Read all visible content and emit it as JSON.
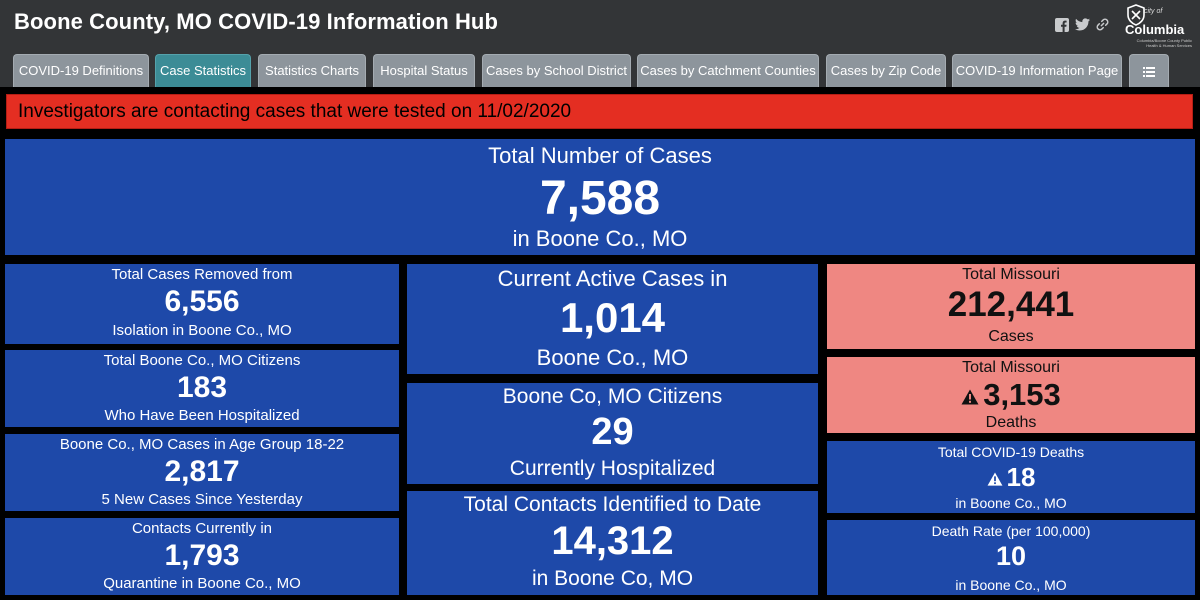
{
  "header": {
    "title": "Boone County, MO COVID-19 Information Hub",
    "logo": {
      "city_of": "city of",
      "name": "Columbia",
      "subtitle": "Columbia/Boone County Public Health & Human Services"
    }
  },
  "tabs": [
    {
      "label": "COVID-19 Definitions"
    },
    {
      "label": "Case Statistics",
      "active": true
    },
    {
      "label": "Statistics Charts"
    },
    {
      "label": "Hospital Status"
    },
    {
      "label": "Cases by School District"
    },
    {
      "label": "Cases by Catchment Counties"
    },
    {
      "label": "Cases by Zip Code"
    },
    {
      "label": "COVID-19 Information Page"
    }
  ],
  "alert": "Investigators are contacting cases that were tested on 11/02/2020",
  "total": {
    "label": "Total Number of Cases",
    "value": "7,588",
    "sub": "in Boone Co., MO"
  },
  "left": [
    {
      "top": "Total Cases Removed from",
      "value": "6,556",
      "bottom": "Isolation in Boone Co., MO"
    },
    {
      "top": "Total Boone Co., MO Citizens",
      "value": "183",
      "bottom": "Who Have Been Hospitalized"
    },
    {
      "top": "Boone Co., MO Cases in Age Group 18-22",
      "value": "2,817",
      "bottom": "5 New Cases Since Yesterday"
    },
    {
      "top": "Contacts Currently in",
      "value": "1,793",
      "bottom": "Quarantine in Boone Co., MO"
    }
  ],
  "middle": [
    {
      "top": "Current Active Cases in",
      "value": "1,014",
      "bottom": "Boone Co., MO"
    },
    {
      "top": "Boone Co, MO Citizens",
      "value": "29",
      "bottom": "Currently Hospitalized"
    },
    {
      "top": "Total Contacts Identified to Date",
      "value": "14,312",
      "bottom": "in Boone Co, MO"
    }
  ],
  "right": [
    {
      "top": "Total Missouri",
      "value": "212,441",
      "bottom": "Cases"
    },
    {
      "top": "Total Missouri",
      "value": "3,153",
      "bottom": "Deaths"
    },
    {
      "top": "Total COVID-19 Deaths",
      "value": "18",
      "bottom": "in Boone Co., MO"
    },
    {
      "top": "Death Rate (per 100,000)",
      "value": "10",
      "bottom": "in Boone Co., MO"
    }
  ],
  "colors": {
    "panel_blue": "#1e49a9",
    "panel_pink": "#ef8782",
    "alert_red": "#e42e22",
    "tab_active": "#3c8c96",
    "tab": "#8d959c",
    "header": "#333537"
  },
  "icons": [
    "facebook-icon",
    "twitter-icon",
    "link-icon",
    "menu-list-icon",
    "warning-icon"
  ]
}
